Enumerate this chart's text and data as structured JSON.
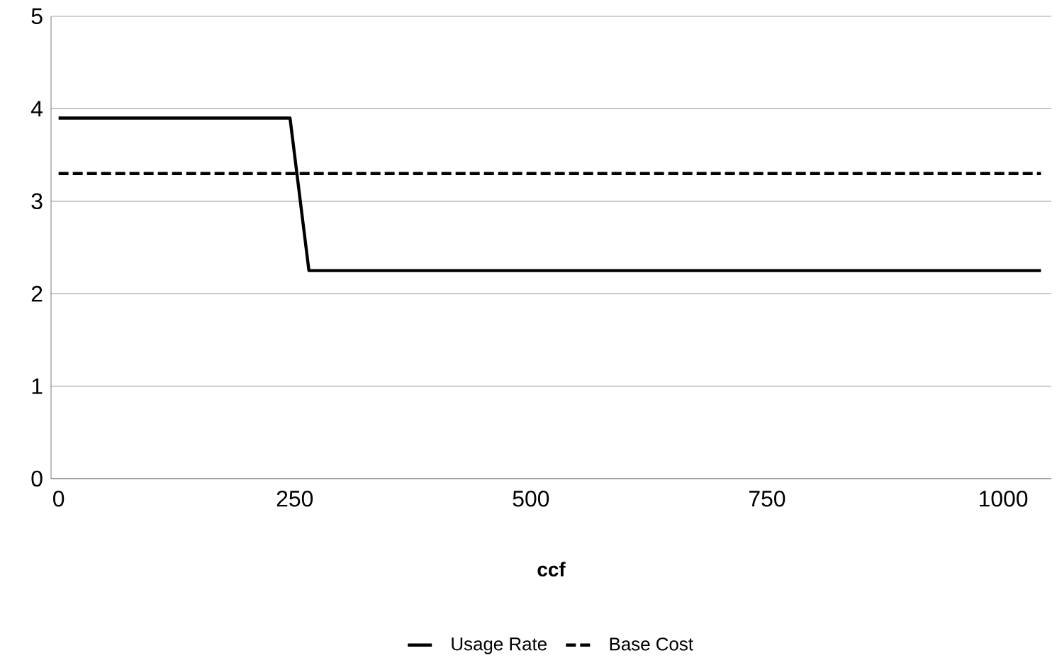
{
  "chart_data": {
    "type": "line",
    "xlabel": "ccf",
    "series": [
      {
        "name": "Usage Rate",
        "color": "#000000",
        "line_style": "solid",
        "x": [
          0,
          245,
          265,
          1040
        ],
        "values": [
          3.9,
          3.9,
          2.25,
          2.25
        ]
      },
      {
        "name": "Base Cost",
        "color": "#000000",
        "line_style": "dashed",
        "x": [
          0,
          1040
        ],
        "values": [
          3.3,
          3.3
        ]
      }
    ],
    "xlim": [
      -8,
      1051
    ],
    "xticks": [
      0,
      250,
      500,
      750,
      1000
    ],
    "ylim": [
      0,
      5
    ],
    "yticks": [
      0,
      1,
      2,
      3,
      4,
      5
    ],
    "grid": "y",
    "legend": "bottom",
    "marker": "none"
  }
}
